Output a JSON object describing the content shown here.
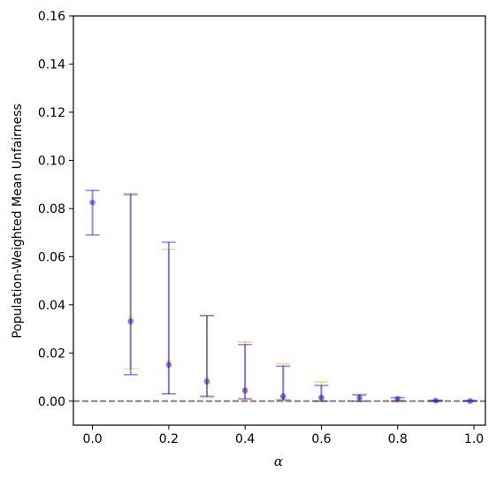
{
  "chart_data": {
    "type": "scatter",
    "title": "",
    "xlabel": "α",
    "ylabel": "Population-Weighted Mean Unfairness",
    "xlim": [
      -0.05,
      1.03
    ],
    "ylim": [
      -0.01,
      0.16
    ],
    "x_ticks": [
      0.0,
      0.2,
      0.4,
      0.6,
      0.8,
      1.0
    ],
    "x_tick_labels": [
      "0.0",
      "0.2",
      "0.4",
      "0.6",
      "0.8",
      "1.0"
    ],
    "y_ticks": [
      0.0,
      0.02,
      0.04,
      0.06,
      0.08,
      0.1,
      0.12,
      0.14,
      0.16
    ],
    "y_tick_labels": [
      "0.00",
      "0.02",
      "0.04",
      "0.06",
      "0.08",
      "0.10",
      "0.12",
      "0.14",
      "0.16"
    ],
    "grid": false,
    "reference_line": {
      "y": 0.0,
      "style": "dashed",
      "color": "#808080"
    },
    "series": [
      {
        "color": "#ffa500",
        "points": [
          {
            "x": 0.1,
            "y": 0.034,
            "low": 0.0135,
            "high": 0.0855
          },
          {
            "x": 0.2,
            "y": 0.016,
            "low": 0.003,
            "high": 0.063
          },
          {
            "x": 0.3,
            "y": 0.009,
            "low": 0.0015,
            "high": 0.0355
          },
          {
            "x": 0.4,
            "y": 0.004,
            "low": 0.0005,
            "high": 0.0245
          },
          {
            "x": 0.5,
            "y": 0.002,
            "low": 0.0,
            "high": 0.0155
          },
          {
            "x": 0.6,
            "y": 0.001,
            "low": 0.0,
            "high": 0.008
          },
          {
            "x": 0.7,
            "y": 0.0005,
            "low": 0.0,
            "high": 0.003
          },
          {
            "x": 0.8,
            "y": 0.0003,
            "low": 0.0,
            "high": 0.0005
          },
          {
            "x": 0.9,
            "y": 0.0001,
            "low": 0.0,
            "high": 0.0002
          },
          {
            "x": 0.99,
            "y": 0.0,
            "low": 0.0,
            "high": 0.0
          }
        ]
      },
      {
        "color": "#0000ff",
        "points": [
          {
            "x": 0.0,
            "y": 0.0825,
            "low": 0.069,
            "high": 0.0875
          },
          {
            "x": 0.1,
            "y": 0.033,
            "low": 0.011,
            "high": 0.086
          },
          {
            "x": 0.2,
            "y": 0.015,
            "low": 0.003,
            "high": 0.066
          },
          {
            "x": 0.3,
            "y": 0.008,
            "low": 0.002,
            "high": 0.0355
          },
          {
            "x": 0.4,
            "y": 0.0045,
            "low": 0.001,
            "high": 0.0235
          },
          {
            "x": 0.5,
            "y": 0.002,
            "low": 0.0005,
            "high": 0.0145
          },
          {
            "x": 0.6,
            "y": 0.0015,
            "low": 0.0,
            "high": 0.0065
          },
          {
            "x": 0.7,
            "y": 0.0015,
            "low": 0.0,
            "high": 0.0025
          },
          {
            "x": 0.8,
            "y": 0.001,
            "low": 0.0,
            "high": 0.0015
          },
          {
            "x": 0.9,
            "y": 0.0002,
            "low": 0.0,
            "high": 0.0003
          },
          {
            "x": 0.99,
            "y": 0.0001,
            "low": 0.0,
            "high": 0.0002
          }
        ]
      }
    ]
  }
}
